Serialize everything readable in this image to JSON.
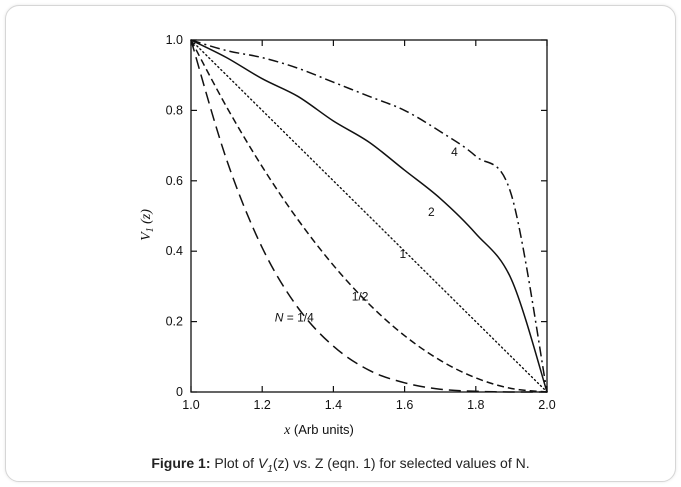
{
  "caption": {
    "prefix": "Figure 1:",
    "text_before": " Plot of ",
    "var_main": "V",
    "var_sub": "1",
    "text_after": "(z) vs. Z (eqn. 1) for selected values of N."
  },
  "chart_data": {
    "type": "line",
    "title": "",
    "xlabel_italic": "x",
    "xlabel_rest": " (Arb units)",
    "ylabel_main": "V",
    "ylabel_sub": "1",
    "ylabel_rest": " (z)",
    "xlim": [
      1.0,
      2.0
    ],
    "ylim": [
      0,
      1.0
    ],
    "xticks": [
      "1.0",
      "1.2",
      "1.4",
      "1.6",
      "1.8",
      "2.0"
    ],
    "yticks": [
      "0",
      "0.2",
      "0.4",
      "0.6",
      "0.8",
      "1.0"
    ],
    "grid": false,
    "x": [
      1.0,
      1.1,
      1.2,
      1.3,
      1.4,
      1.5,
      1.6,
      1.7,
      1.8,
      1.9,
      2.0
    ],
    "series": [
      {
        "name": "N = 1/4",
        "label": "N = 1/4",
        "style": "long-dash",
        "values": [
          1.0,
          0.66,
          0.41,
          0.24,
          0.13,
          0.062,
          0.026,
          0.008,
          0.002,
          0.0,
          0.0
        ]
      },
      {
        "name": "1/2",
        "label": "1/2",
        "style": "dash",
        "values": [
          1.0,
          0.81,
          0.64,
          0.49,
          0.36,
          0.25,
          0.16,
          0.09,
          0.04,
          0.01,
          0.0
        ]
      },
      {
        "name": "1",
        "label": "1",
        "style": "dot",
        "values": [
          1.0,
          0.9,
          0.8,
          0.7,
          0.6,
          0.5,
          0.4,
          0.3,
          0.2,
          0.1,
          0.0
        ]
      },
      {
        "name": "2",
        "label": "2",
        "style": "solid",
        "values": [
          1.0,
          0.95,
          0.89,
          0.84,
          0.77,
          0.71,
          0.63,
          0.55,
          0.45,
          0.32,
          0.0
        ]
      },
      {
        "name": "4",
        "label": "4",
        "style": "dash-dot",
        "values": [
          1.0,
          0.97,
          0.95,
          0.92,
          0.88,
          0.84,
          0.8,
          0.74,
          0.67,
          0.56,
          0.0
        ]
      }
    ]
  }
}
